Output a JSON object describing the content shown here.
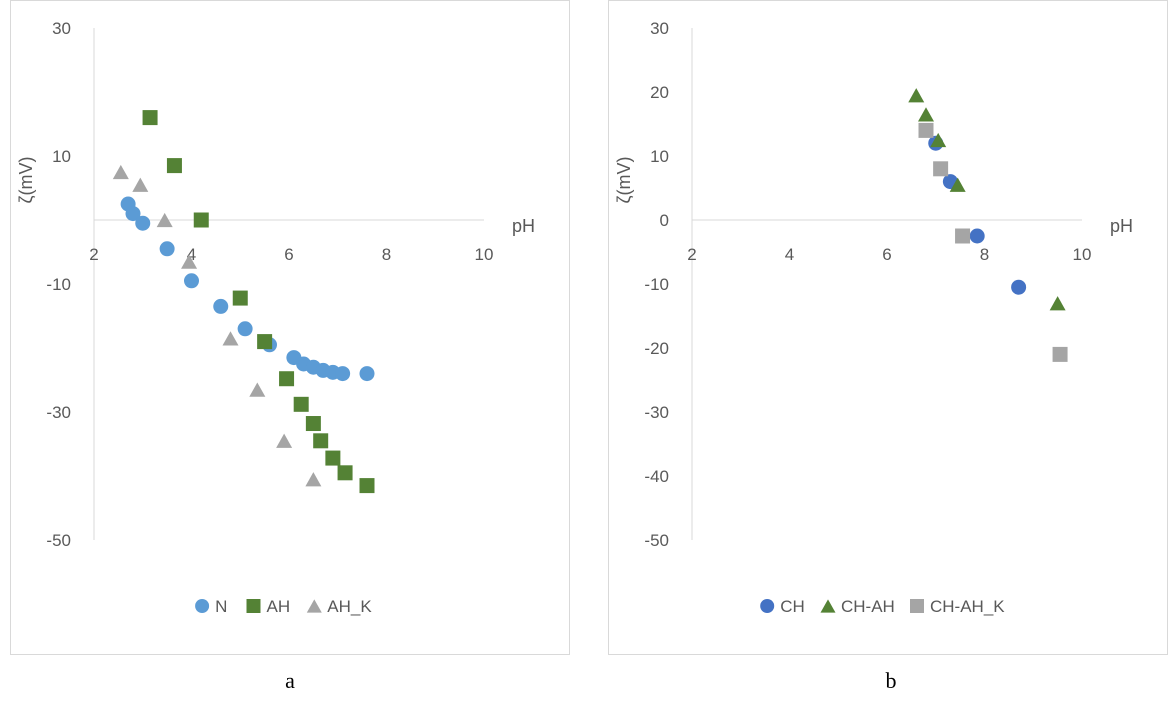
{
  "chart_data": [
    {
      "type": "scatter",
      "title": "",
      "xlabel": "pH",
      "ylabel": "ζ(mV)",
      "xlim": [
        2,
        10
      ],
      "ylim": [
        -50,
        30
      ],
      "xticks": [
        2,
        4,
        6,
        8,
        10
      ],
      "yticks": [
        30,
        10,
        -10,
        -30,
        -50
      ],
      "grid": false,
      "legend": "bottom",
      "caption": "a",
      "series": [
        {
          "name": "N",
          "marker": "circle",
          "color": "#5b9bd5",
          "x": [
            2.7,
            2.8,
            3.0,
            3.5,
            4.0,
            4.6,
            5.1,
            5.6,
            6.1,
            6.3,
            6.5,
            6.7,
            6.9,
            7.1,
            7.6
          ],
          "y": [
            2.5,
            1.0,
            -0.5,
            -4.5,
            -9.5,
            -13.5,
            -17,
            -19.5,
            -21.5,
            -22.5,
            -23,
            -23.5,
            -23.8,
            -24,
            -24
          ]
        },
        {
          "name": "AH",
          "marker": "square",
          "color": "#548235",
          "x": [
            3.15,
            3.65,
            4.2,
            5.0,
            5.5,
            5.95,
            6.25,
            6.5,
            6.65,
            6.9,
            7.15,
            7.6
          ],
          "y": [
            16,
            8.5,
            0,
            -12.2,
            -19,
            -24.8,
            -28.8,
            -31.8,
            -34.5,
            -37.2,
            -39.5,
            -41.5
          ]
        },
        {
          "name": "AH_K",
          "marker": "triangle",
          "color": "#a5a5a5",
          "x": [
            2.55,
            2.95,
            3.45,
            3.95,
            4.8,
            5.35,
            5.9,
            6.5
          ],
          "y": [
            7.5,
            5.5,
            0,
            -6.5,
            -18.5,
            -26.5,
            -34.5,
            -40.5
          ]
        }
      ]
    },
    {
      "type": "scatter",
      "title": "",
      "xlabel": "pH",
      "ylabel": "ζ(mV)",
      "xlim": [
        2,
        10
      ],
      "ylim": [
        -50,
        30
      ],
      "xticks": [
        2,
        4,
        6,
        8,
        10
      ],
      "yticks": [
        30,
        20,
        10,
        0,
        -10,
        -20,
        -30,
        -40,
        -50
      ],
      "grid": false,
      "legend": "bottom",
      "caption": "b",
      "series": [
        {
          "name": "CH",
          "marker": "circle",
          "color": "#4472c4",
          "x": [
            7.0,
            7.3,
            7.85,
            8.7
          ],
          "y": [
            12,
            6,
            -2.5,
            -10.5
          ]
        },
        {
          "name": "CH-AH",
          "marker": "triangle",
          "color": "#548235",
          "x": [
            6.6,
            6.8,
            7.05,
            7.45,
            9.5
          ],
          "y": [
            19.5,
            16.5,
            12.5,
            5.5,
            -13
          ]
        },
        {
          "name": "CH-AH_K",
          "marker": "square",
          "color": "#a5a5a5",
          "x": [
            6.8,
            7.1,
            7.55,
            9.55
          ],
          "y": [
            14,
            8,
            -2.5,
            -21
          ]
        }
      ]
    }
  ]
}
